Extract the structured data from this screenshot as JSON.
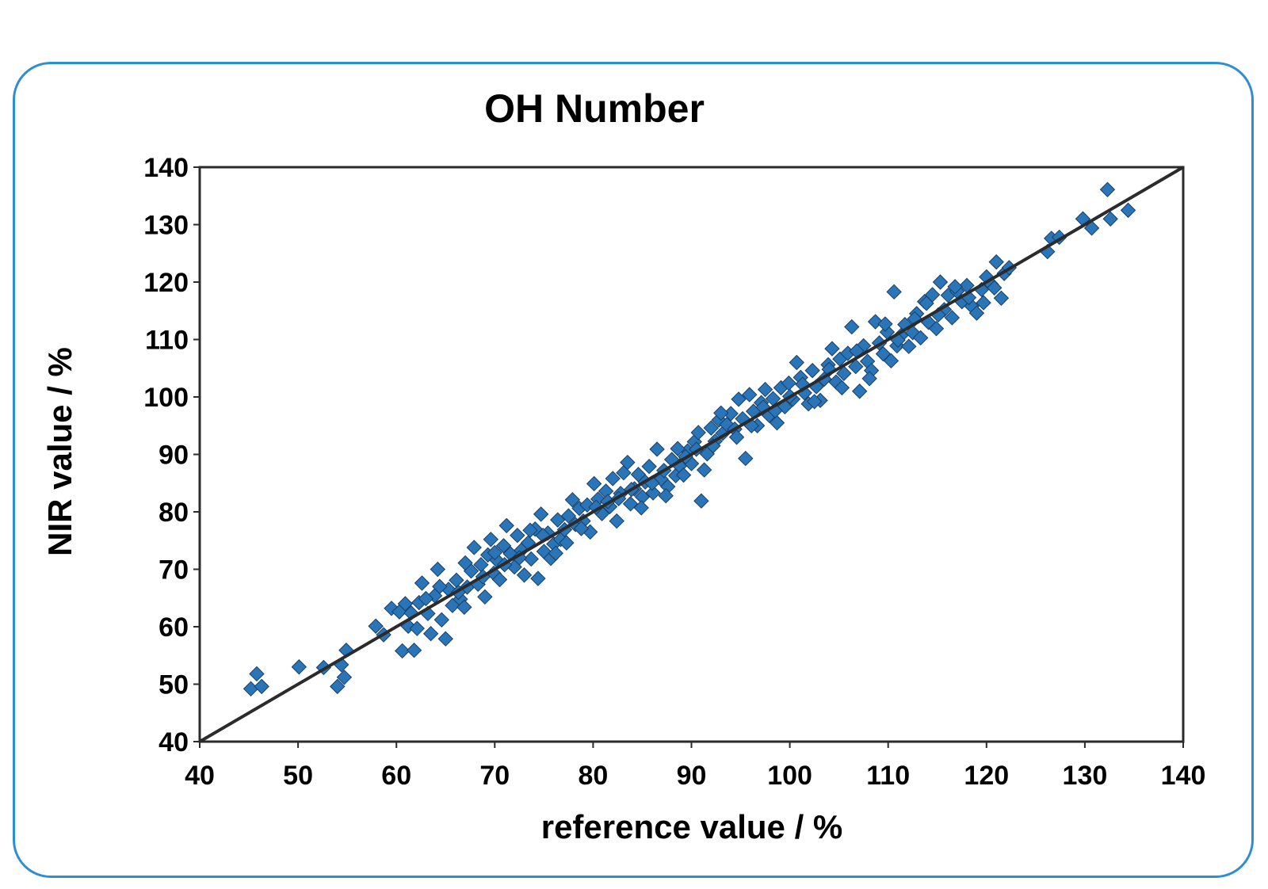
{
  "chart_data": {
    "type": "scatter",
    "title": "OH Number",
    "xlabel": "reference value / %",
    "ylabel": "NIR value / %",
    "xlim": [
      40,
      140
    ],
    "ylim": [
      40,
      140
    ],
    "xticks": [
      "40",
      "50",
      "60",
      "70",
      "80",
      "90",
      "100",
      "110",
      "120",
      "130",
      "140"
    ],
    "yticks": [
      "40",
      "50",
      "60",
      "70",
      "80",
      "90",
      "100",
      "110",
      "120",
      "130",
      "140"
    ],
    "grid": false,
    "legend": "none",
    "marker_color": "#2a74b8",
    "line_color": "#2b2b2b",
    "reference_line": {
      "x": [
        40,
        140
      ],
      "y": [
        40,
        140
      ]
    },
    "points": [
      [
        45.2,
        49.2
      ],
      [
        45.8,
        51.8
      ],
      [
        46.3,
        49.6
      ],
      [
        50.1,
        53.0
      ],
      [
        52.6,
        52.9
      ],
      [
        54.0,
        49.6
      ],
      [
        54.7,
        51.2
      ],
      [
        54.9,
        55.9
      ],
      [
        54.4,
        53.4
      ],
      [
        57.9,
        60.1
      ],
      [
        58.7,
        58.6
      ],
      [
        59.5,
        63.2
      ],
      [
        60.3,
        62.6
      ],
      [
        60.6,
        55.8
      ],
      [
        61.2,
        60.1
      ],
      [
        61.8,
        55.9
      ],
      [
        62.1,
        59.7
      ],
      [
        62.3,
        64.2
      ],
      [
        62.6,
        67.6
      ],
      [
        63.2,
        62.3
      ],
      [
        63.5,
        58.8
      ],
      [
        63.9,
        65.4
      ],
      [
        64.2,
        70.0
      ],
      [
        64.6,
        61.2
      ],
      [
        65.0,
        57.9
      ],
      [
        65.3,
        66.5
      ],
      [
        65.7,
        63.7
      ],
      [
        66.1,
        68.1
      ],
      [
        66.5,
        64.8
      ],
      [
        66.9,
        63.4
      ],
      [
        67.2,
        66.9
      ],
      [
        67.6,
        69.7
      ],
      [
        67.9,
        73.8
      ],
      [
        68.3,
        67.4
      ],
      [
        68.6,
        70.8
      ],
      [
        69.0,
        65.2
      ],
      [
        69.3,
        72.5
      ],
      [
        69.6,
        75.2
      ],
      [
        69.9,
        69.3
      ],
      [
        70.2,
        71.6
      ],
      [
        70.5,
        68.2
      ],
      [
        70.9,
        74.1
      ],
      [
        71.2,
        77.6
      ],
      [
        71.6,
        72.7
      ],
      [
        72.0,
        70.4
      ],
      [
        72.3,
        75.9
      ],
      [
        72.7,
        73.3
      ],
      [
        73.0,
        69.0
      ],
      [
        73.4,
        74.6
      ],
      [
        73.7,
        71.8
      ],
      [
        74.1,
        77.0
      ],
      [
        74.4,
        68.4
      ],
      [
        74.7,
        79.6
      ],
      [
        75.0,
        73.1
      ],
      [
        75.4,
        76.3
      ],
      [
        75.7,
        71.9
      ],
      [
        76.0,
        74.4
      ],
      [
        76.4,
        78.6
      ],
      [
        76.7,
        75.2
      ],
      [
        77.1,
        76.9
      ],
      [
        77.5,
        79.3
      ],
      [
        77.9,
        82.1
      ],
      [
        78.2,
        77.8
      ],
      [
        78.6,
        80.6
      ],
      [
        79.0,
        78.4
      ],
      [
        79.4,
        81.2
      ],
      [
        79.7,
        76.5
      ],
      [
        80.1,
        84.9
      ],
      [
        80.5,
        82.2
      ],
      [
        80.9,
        79.7
      ],
      [
        81.3,
        83.6
      ],
      [
        81.7,
        80.9
      ],
      [
        82.0,
        85.8
      ],
      [
        82.4,
        78.4
      ],
      [
        82.8,
        83.2
      ],
      [
        83.1,
        86.8
      ],
      [
        83.5,
        88.6
      ],
      [
        83.8,
        81.4
      ],
      [
        84.2,
        84.0
      ],
      [
        84.6,
        86.5
      ],
      [
        85.0,
        82.6
      ],
      [
        85.3,
        85.2
      ],
      [
        85.7,
        87.9
      ],
      [
        86.1,
        83.3
      ],
      [
        86.5,
        90.9
      ],
      [
        86.9,
        85.7
      ],
      [
        87.2,
        87.2
      ],
      [
        87.6,
        84.4
      ],
      [
        88.0,
        89.1
      ],
      [
        88.4,
        86.3
      ],
      [
        88.8,
        88.0
      ],
      [
        89.2,
        86.4
      ],
      [
        89.6,
        90.6
      ],
      [
        90.0,
        88.4
      ],
      [
        90.3,
        92.2
      ],
      [
        90.7,
        93.8
      ],
      [
        91.0,
        81.9
      ],
      [
        91.3,
        87.3
      ],
      [
        91.6,
        90.1
      ],
      [
        92.0,
        94.6
      ],
      [
        92.4,
        92.3
      ],
      [
        92.8,
        96.0
      ],
      [
        93.2,
        93.7
      ],
      [
        93.6,
        95.2
      ],
      [
        94.0,
        97.1
      ],
      [
        94.4,
        94.4
      ],
      [
        94.8,
        99.6
      ],
      [
        95.2,
        96.2
      ],
      [
        95.5,
        89.3
      ],
      [
        95.9,
        100.4
      ],
      [
        96.3,
        97.5
      ],
      [
        96.7,
        95.0
      ],
      [
        97.1,
        99.0
      ],
      [
        97.5,
        101.3
      ],
      [
        97.9,
        96.8
      ],
      [
        98.3,
        99.7
      ],
      [
        98.7,
        95.5
      ],
      [
        99.1,
        101.6
      ],
      [
        99.5,
        98.3
      ],
      [
        99.9,
        102.4
      ],
      [
        100.3,
        99.6
      ],
      [
        100.7,
        106.0
      ],
      [
        101.1,
        103.4
      ],
      [
        101.5,
        100.7
      ],
      [
        101.9,
        98.8
      ],
      [
        102.3,
        104.6
      ],
      [
        102.7,
        101.8
      ],
      [
        103.1,
        99.4
      ],
      [
        103.5,
        103.1
      ],
      [
        103.9,
        105.6
      ],
      [
        104.3,
        108.4
      ],
      [
        104.7,
        102.6
      ],
      [
        105.1,
        106.6
      ],
      [
        105.5,
        104.1
      ],
      [
        105.9,
        107.6
      ],
      [
        106.3,
        112.2
      ],
      [
        106.7,
        105.3
      ],
      [
        107.1,
        101.0
      ],
      [
        107.5,
        108.9
      ],
      [
        107.9,
        106.2
      ],
      [
        108.3,
        104.6
      ],
      [
        108.7,
        113.1
      ],
      [
        109.1,
        109.4
      ],
      [
        109.5,
        107.5
      ],
      [
        109.9,
        111.3
      ],
      [
        110.3,
        106.3
      ],
      [
        110.6,
        118.3
      ],
      [
        110.9,
        108.9
      ],
      [
        111.3,
        110.7
      ],
      [
        111.7,
        112.6
      ],
      [
        112.1,
        108.8
      ],
      [
        112.5,
        111.2
      ],
      [
        112.9,
        114.5
      ],
      [
        113.3,
        110.3
      ],
      [
        113.7,
        116.6
      ],
      [
        114.1,
        113.0
      ],
      [
        114.5,
        117.8
      ],
      [
        114.9,
        111.9
      ],
      [
        115.3,
        120.0
      ],
      [
        115.7,
        115.2
      ],
      [
        116.1,
        117.7
      ],
      [
        116.5,
        113.8
      ],
      [
        117.0,
        118.4
      ],
      [
        117.5,
        116.6
      ],
      [
        118.0,
        119.4
      ],
      [
        118.5,
        115.8
      ],
      [
        119.0,
        114.6
      ],
      [
        119.5,
        118.7
      ],
      [
        120.0,
        120.9
      ],
      [
        120.5,
        119.6
      ],
      [
        121.0,
        123.5
      ],
      [
        121.5,
        117.2
      ],
      [
        121.8,
        121.5
      ],
      [
        122.3,
        122.5
      ],
      [
        126.2,
        125.3
      ],
      [
        126.6,
        127.6
      ],
      [
        127.4,
        127.8
      ],
      [
        129.8,
        131.0
      ],
      [
        130.7,
        129.4
      ],
      [
        132.3,
        136.1
      ],
      [
        132.6,
        131.0
      ],
      [
        134.4,
        132.5
      ],
      [
        60.9,
        64.0
      ],
      [
        61.5,
        62.4
      ],
      [
        63.0,
        64.9
      ],
      [
        64.4,
        67.0
      ],
      [
        66.3,
        66.0
      ],
      [
        67.0,
        71.1
      ],
      [
        68.8,
        68.7
      ],
      [
        70.0,
        72.9
      ],
      [
        71.0,
        70.8
      ],
      [
        72.5,
        72.0
      ],
      [
        73.6,
        76.8
      ],
      [
        74.9,
        75.9
      ],
      [
        76.2,
        72.8
      ],
      [
        77.3,
        74.6
      ],
      [
        78.8,
        77.1
      ],
      [
        80.3,
        80.8
      ],
      [
        81.5,
        81.8
      ],
      [
        82.6,
        82.3
      ],
      [
        83.9,
        83.9
      ],
      [
        84.9,
        80.7
      ],
      [
        86.0,
        85.0
      ],
      [
        87.4,
        82.8
      ],
      [
        88.6,
        91.0
      ],
      [
        89.4,
        89.6
      ],
      [
        90.5,
        90.9
      ],
      [
        92.2,
        91.5
      ],
      [
        93.0,
        97.2
      ],
      [
        94.6,
        93.0
      ],
      [
        96.1,
        95.0
      ],
      [
        97.3,
        98.2
      ],
      [
        98.5,
        97.6
      ],
      [
        100.0,
        100.1
      ],
      [
        101.3,
        102.2
      ],
      [
        102.5,
        99.2
      ],
      [
        104.0,
        104.8
      ],
      [
        105.3,
        101.6
      ],
      [
        106.8,
        108.0
      ],
      [
        108.1,
        103.2
      ],
      [
        109.7,
        112.7
      ],
      [
        111.0,
        109.9
      ],
      [
        112.7,
        113.6
      ],
      [
        113.9,
        116.3
      ],
      [
        115.1,
        114.3
      ],
      [
        116.8,
        119.2
      ],
      [
        118.2,
        117.3
      ],
      [
        119.7,
        116.4
      ],
      [
        120.8,
        119.0
      ]
    ]
  }
}
